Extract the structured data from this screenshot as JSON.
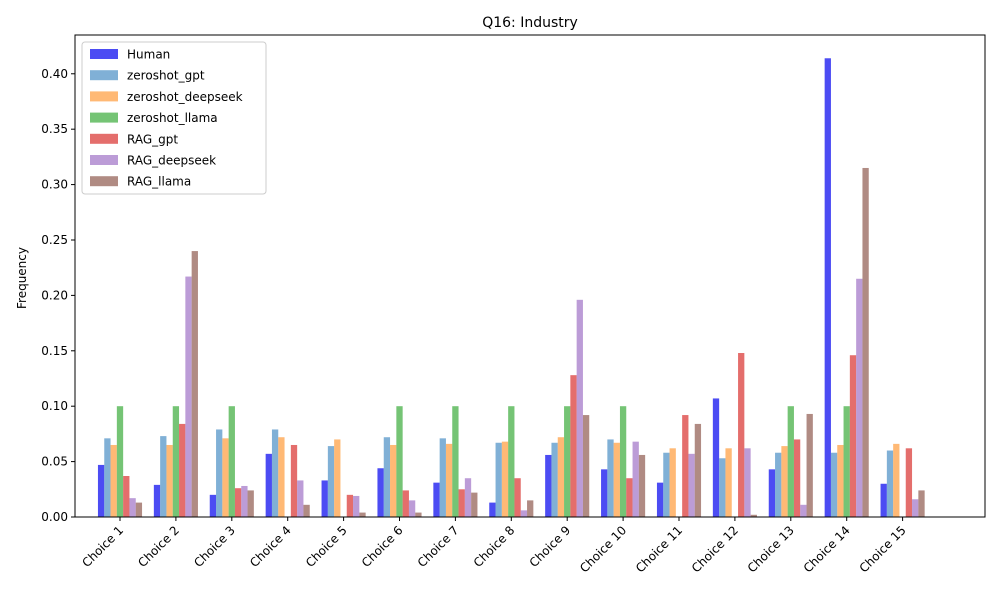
{
  "chart_data": {
    "type": "bar",
    "title": "Q16: Industry",
    "xlabel": "",
    "ylabel": "Frequency",
    "ylim": [
      0,
      0.435
    ],
    "yticks": [
      "0.00",
      "0.05",
      "0.10",
      "0.15",
      "0.20",
      "0.25",
      "0.30",
      "0.35",
      "0.40"
    ],
    "grid": false,
    "legend_position": "top-left",
    "categories": [
      "Choice 1",
      "Choice 2",
      "Choice 3",
      "Choice 4",
      "Choice 5",
      "Choice 6",
      "Choice 7",
      "Choice 8",
      "Choice 9",
      "Choice 10",
      "Choice 11",
      "Choice 12",
      "Choice 13",
      "Choice 14",
      "Choice 15"
    ],
    "series": [
      {
        "name": "Human",
        "color": "#0000ee",
        "values": [
          0.047,
          0.029,
          0.02,
          0.057,
          0.033,
          0.044,
          0.031,
          0.013,
          0.056,
          0.043,
          0.031,
          0.107,
          0.043,
          0.414,
          0.03
        ]
      },
      {
        "name": "zeroshot_gpt",
        "color": "#4a8ec4",
        "values": [
          0.071,
          0.073,
          0.079,
          0.079,
          0.064,
          0.072,
          0.071,
          0.067,
          0.067,
          0.07,
          0.058,
          0.053,
          0.058,
          0.058,
          0.06
        ]
      },
      {
        "name": "zeroshot_deepseek",
        "color": "#ff9b3a",
        "values": [
          0.065,
          0.065,
          0.071,
          0.072,
          0.07,
          0.065,
          0.066,
          0.068,
          0.072,
          0.067,
          0.062,
          0.062,
          0.064,
          0.065,
          0.066
        ]
      },
      {
        "name": "zeroshot_llama",
        "color": "#3aab3a",
        "values": [
          0.1,
          0.1,
          0.1,
          0.0,
          0.0,
          0.1,
          0.1,
          0.1,
          0.1,
          0.1,
          0.0,
          0.0,
          0.1,
          0.1,
          0.0
        ]
      },
      {
        "name": "RAG_gpt",
        "color": "#d9302e",
        "values": [
          0.037,
          0.084,
          0.026,
          0.065,
          0.02,
          0.024,
          0.025,
          0.035,
          0.128,
          0.035,
          0.092,
          0.148,
          0.07,
          0.146,
          0.062
        ]
      },
      {
        "name": "RAG_deepseek",
        "color": "#9f72c6",
        "values": [
          0.017,
          0.217,
          0.028,
          0.033,
          0.019,
          0.015,
          0.035,
          0.006,
          0.196,
          0.068,
          0.057,
          0.062,
          0.011,
          0.215,
          0.016
        ]
      },
      {
        "name": "RAG_llama",
        "color": "#8f5a4e",
        "values": [
          0.013,
          0.24,
          0.024,
          0.011,
          0.004,
          0.004,
          0.022,
          0.015,
          0.092,
          0.056,
          0.084,
          0.002,
          0.093,
          0.315,
          0.024
        ]
      }
    ]
  }
}
